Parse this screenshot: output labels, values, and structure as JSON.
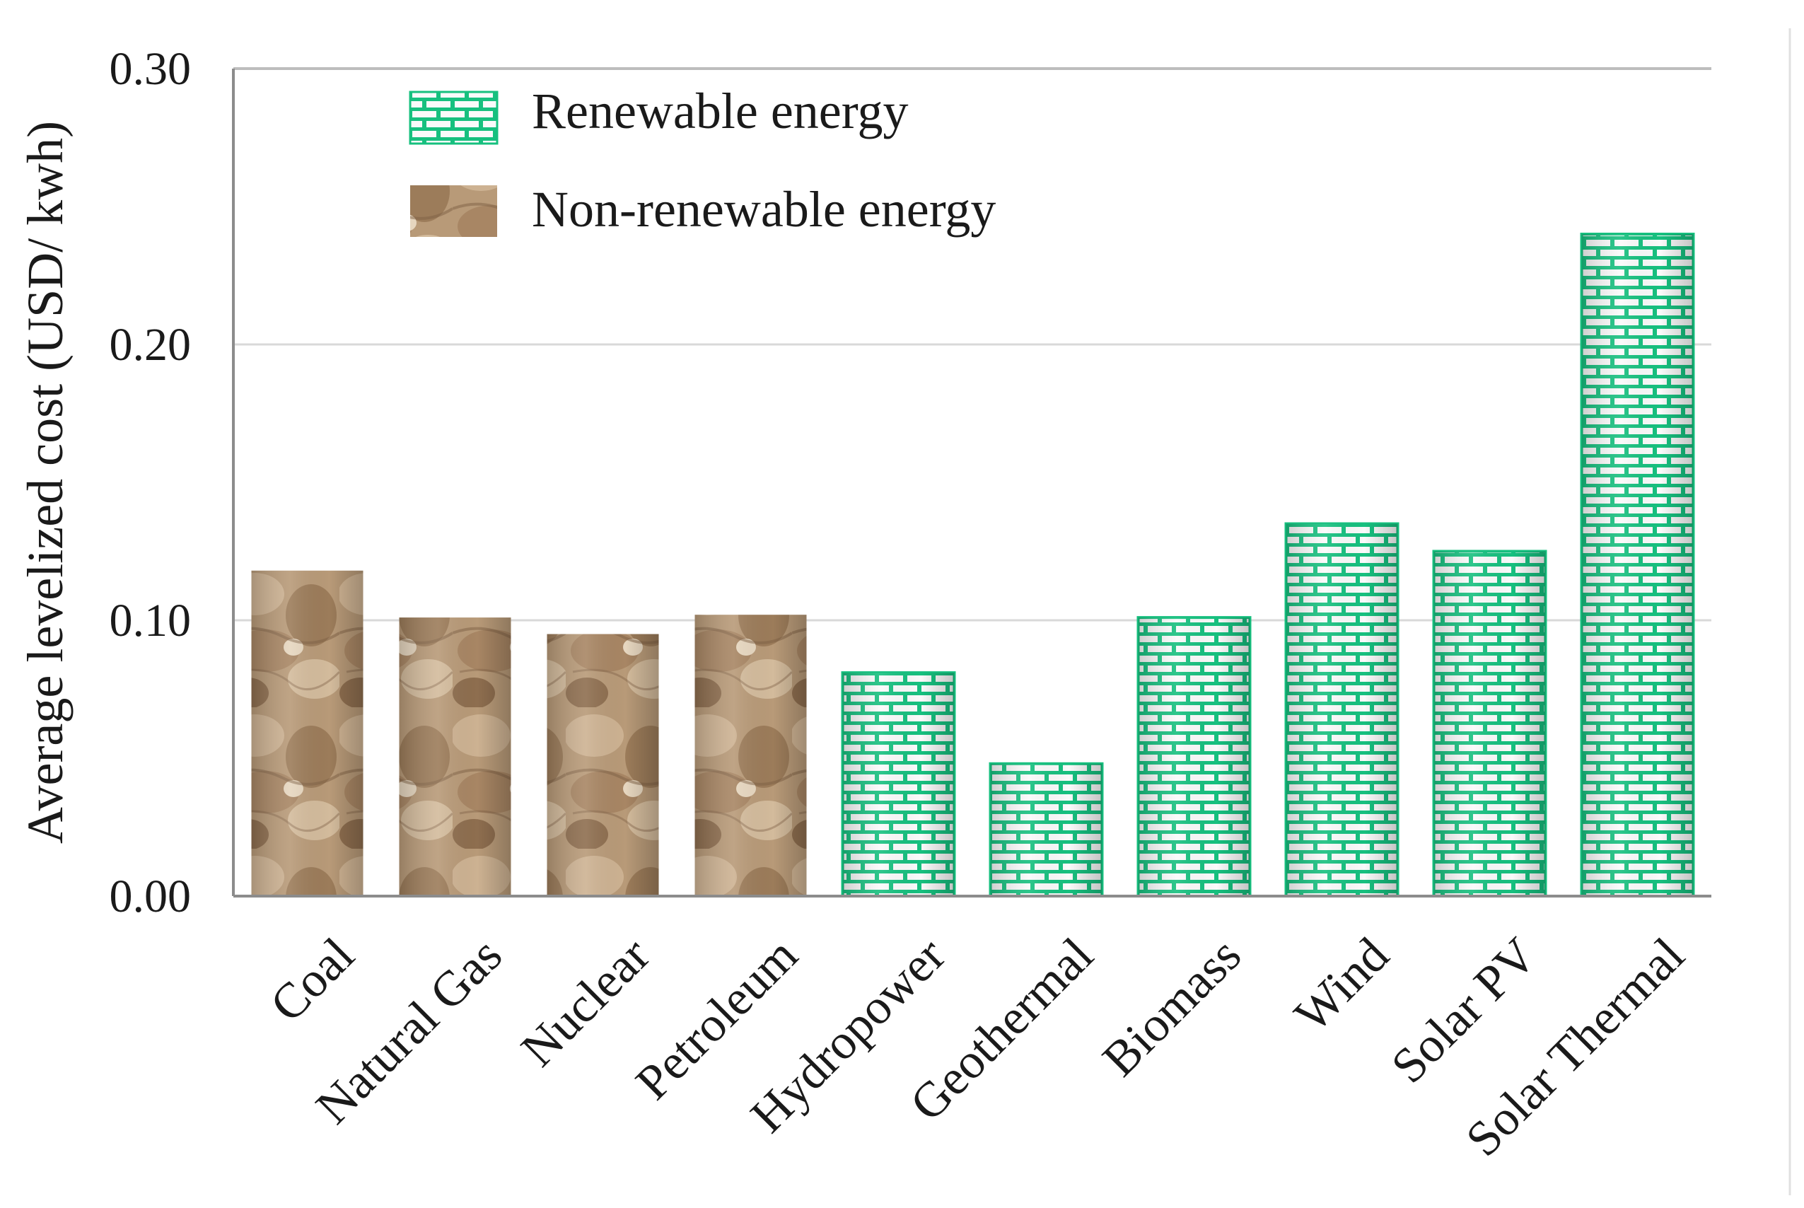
{
  "chart_data": {
    "type": "bar",
    "title": "",
    "xlabel": "",
    "ylabel": "Average levelized  cost (USD/ kwh)",
    "ylim": [
      0,
      0.3
    ],
    "yticks": [
      "0.00",
      "0.10",
      "0.20",
      "0.30"
    ],
    "ytick_values": [
      0,
      0.1,
      0.2,
      0.3
    ],
    "grid": true,
    "legend_position": "top-left",
    "legend": [
      {
        "key": "renewable",
        "label": "Renewable energy"
      },
      {
        "key": "nonrenewable",
        "label": "Non-renewable energy"
      }
    ],
    "categories": [
      "Coal",
      "Natural Gas",
      "Nuclear",
      "Petroleum",
      "Hydropower",
      "Geothermal",
      "Biomass",
      "Wind",
      "Solar PV",
      "Solar Thermal"
    ],
    "values": [
      0.118,
      0.101,
      0.095,
      0.102,
      0.081,
      0.048,
      0.101,
      0.135,
      0.125,
      0.24
    ],
    "groups": [
      "nonrenewable",
      "nonrenewable",
      "nonrenewable",
      "nonrenewable",
      "renewable",
      "renewable",
      "renewable",
      "renewable",
      "renewable",
      "renewable"
    ]
  },
  "colors": {
    "renewable": "#17c07f",
    "nonrenewable": "#b89a78",
    "grid": "#d9d9d9",
    "axis": "#8c8c8c"
  }
}
